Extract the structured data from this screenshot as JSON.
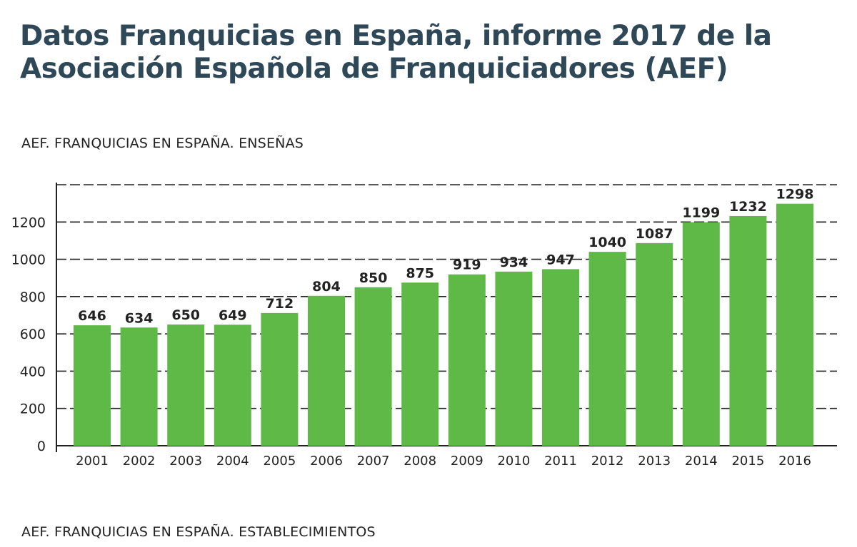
{
  "title": "Datos Franquicias en España, informe 2017 de la Asociación Española de Franquiciadores (AEF)",
  "chart_data": {
    "type": "bar",
    "title": "AEF. FRANQUICIAS EN ESPAÑA. ENSEÑAS",
    "categories": [
      "2001",
      "2002",
      "2003",
      "2004",
      "2005",
      "2006",
      "2007",
      "2008",
      "2009",
      "2010",
      "2011",
      "2012",
      "2013",
      "2014",
      "2015",
      "2016"
    ],
    "values": [
      646,
      634,
      650,
      649,
      712,
      804,
      850,
      875,
      919,
      934,
      947,
      1040,
      1087,
      1199,
      1232,
      1298
    ],
    "xlabel": "",
    "ylabel": "",
    "ylim": [
      0,
      1400
    ],
    "yticks": [
      0,
      200,
      400,
      600,
      800,
      1000,
      1200
    ],
    "grid": true,
    "bar_color": "#5fb946"
  },
  "next_section_title": "AEF. FRANQUICIAS EN ESPAÑA. ESTABLECIMIENTOS"
}
